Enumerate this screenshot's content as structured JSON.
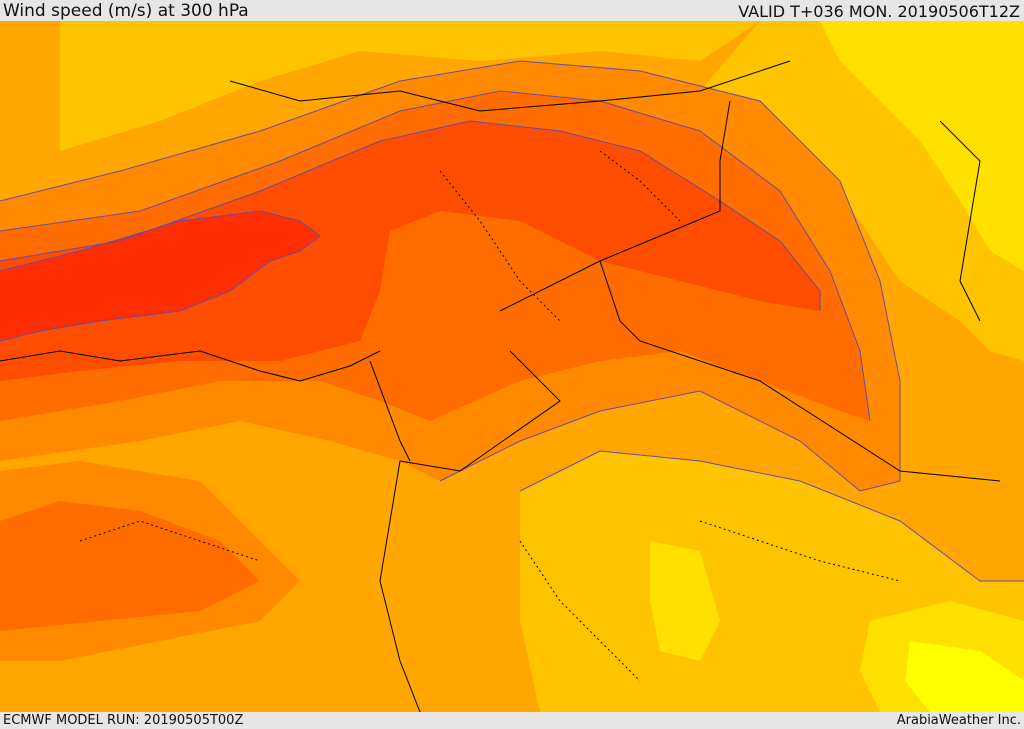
{
  "header": {
    "title": "Wind speed (m/s) at 300 hPa",
    "valid": "VALID T+036 MON. 20190506T12Z"
  },
  "footer": {
    "model_run": "ECMWF MODEL RUN: 20190505T00Z",
    "credit": "ArabiaWeather Inc."
  },
  "colors": {
    "band_1": "#ffff00",
    "band_2": "#ffe000",
    "band_3": "#ffc400",
    "band_4": "#ffa700",
    "band_5": "#ff8a00",
    "band_6": "#ff6d00",
    "band_7": "#ff4d00",
    "band_8": "#ff2e00",
    "contour": "#6a4aa8",
    "boundary": "#000000"
  }
}
